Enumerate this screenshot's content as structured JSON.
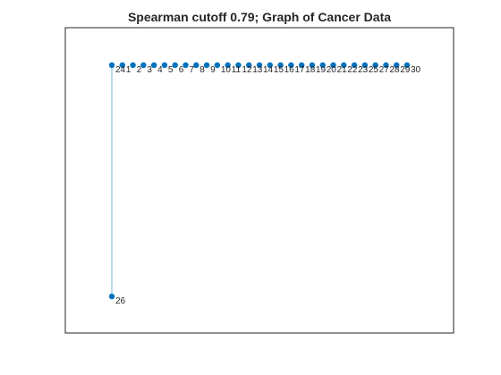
{
  "title": "Spearman cutoff 0.79; Graph of Cancer Data",
  "colors": {
    "node": "#0072BD",
    "edge": "#77B9E3",
    "axes": "#262626",
    "background": "#ffffff"
  },
  "graph": {
    "layout": "layered",
    "nodes": [
      {
        "id": "24",
        "label": "24"
      },
      {
        "id": "1",
        "label": "1"
      },
      {
        "id": "2",
        "label": "2"
      },
      {
        "id": "3",
        "label": "3"
      },
      {
        "id": "4",
        "label": "4"
      },
      {
        "id": "5",
        "label": "5"
      },
      {
        "id": "6",
        "label": "6"
      },
      {
        "id": "7",
        "label": "7"
      },
      {
        "id": "8",
        "label": "8"
      },
      {
        "id": "9",
        "label": "9"
      },
      {
        "id": "10",
        "label": "10"
      },
      {
        "id": "11",
        "label": "11"
      },
      {
        "id": "12",
        "label": "12"
      },
      {
        "id": "13",
        "label": "13"
      },
      {
        "id": "14",
        "label": "14"
      },
      {
        "id": "15",
        "label": "15"
      },
      {
        "id": "16",
        "label": "16"
      },
      {
        "id": "17",
        "label": "17"
      },
      {
        "id": "18",
        "label": "18"
      },
      {
        "id": "19",
        "label": "19"
      },
      {
        "id": "20",
        "label": "20"
      },
      {
        "id": "21",
        "label": "21"
      },
      {
        "id": "22",
        "label": "22"
      },
      {
        "id": "23",
        "label": "23"
      },
      {
        "id": "25",
        "label": "25"
      },
      {
        "id": "27",
        "label": "27"
      },
      {
        "id": "28",
        "label": "28"
      },
      {
        "id": "29",
        "label": "29"
      },
      {
        "id": "30",
        "label": "30"
      },
      {
        "id": "26",
        "label": "26"
      }
    ],
    "edges": [
      {
        "source": "24",
        "target": "26"
      }
    ]
  }
}
